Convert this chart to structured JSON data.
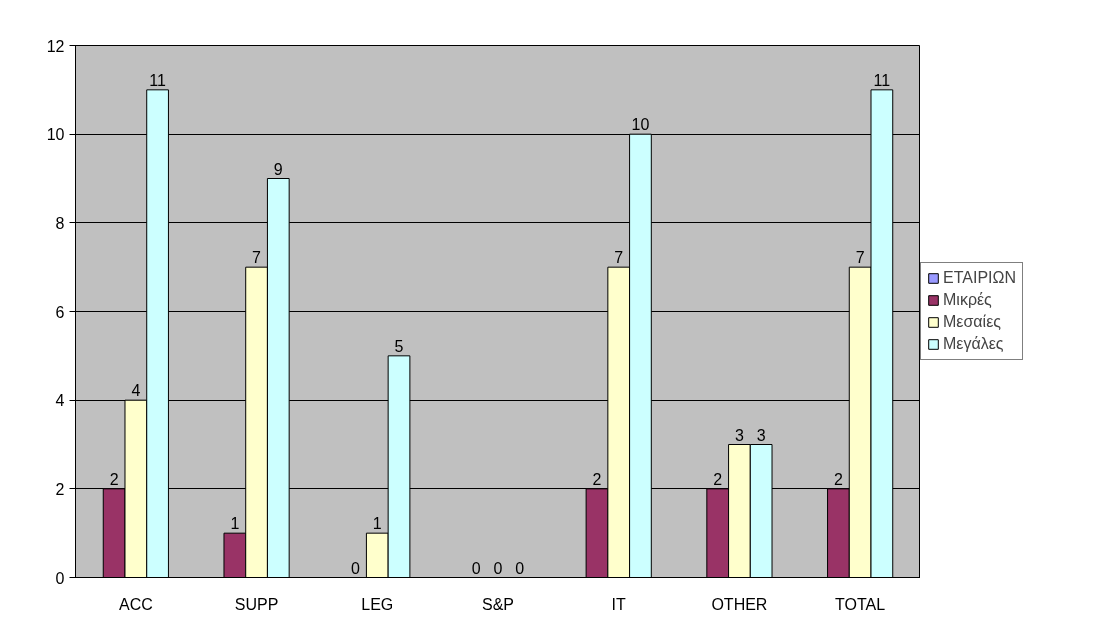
{
  "chart_data": {
    "type": "bar",
    "categories": [
      "ACC",
      "SUPP",
      "LEG",
      "S&P",
      "IT",
      "OTHER",
      "TOTAL"
    ],
    "series": [
      {
        "name": "ΕΤΑΙΡΙΩΝ",
        "color": "#9999ff",
        "values": [
          null,
          null,
          null,
          null,
          null,
          null,
          null
        ]
      },
      {
        "name": "Μικρές",
        "color": "#993366",
        "values": [
          2,
          1,
          0,
          0,
          2,
          2,
          2
        ]
      },
      {
        "name": "Μεσαίες",
        "color": "#ffffcc",
        "values": [
          4,
          7,
          1,
          0,
          7,
          3,
          7
        ]
      },
      {
        "name": "Μεγάλες",
        "color": "#ccffff",
        "values": [
          11,
          9,
          5,
          0,
          10,
          3,
          11
        ]
      }
    ],
    "ylim": [
      0,
      12
    ],
    "yticks": [
      0,
      2,
      4,
      6,
      8,
      10,
      12
    ],
    "grid": "y",
    "legend": "right",
    "data_labels": true
  }
}
